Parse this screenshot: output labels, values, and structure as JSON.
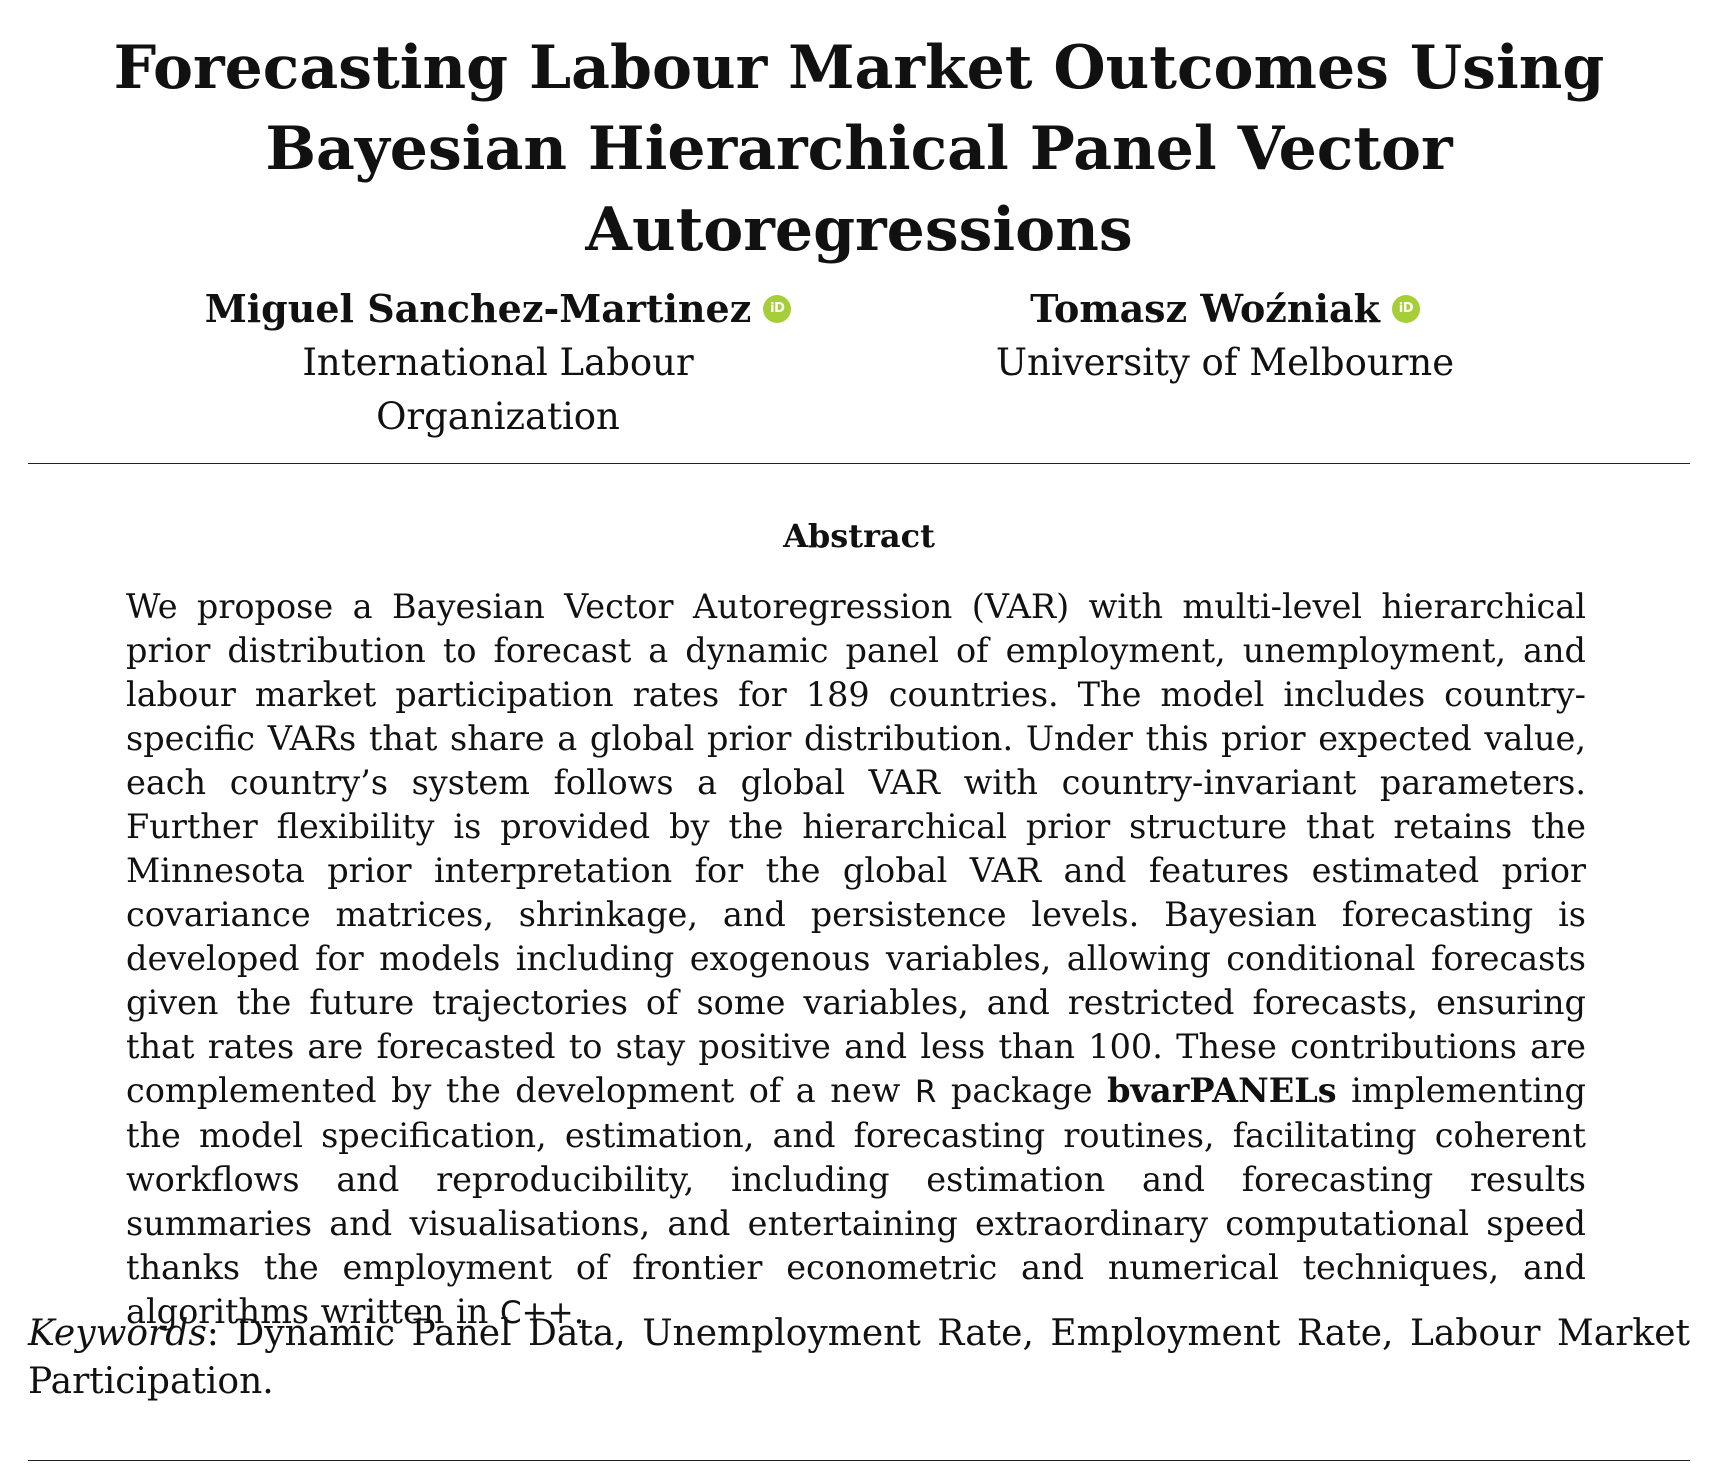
{
  "paper": {
    "title": "Forecasting Labour Market Outcomes Using Bayesian Hierarchical Panel Vector Autoregressions",
    "authors": [
      {
        "name": "Miguel Sanchez-Martinez",
        "affiliation": "International Labour Organization",
        "orcid_icon": "orcid-icon",
        "orcid_glyph": "iD"
      },
      {
        "name": "Tomasz Woźniak",
        "affiliation": "University of Melbourne",
        "orcid_icon": "orcid-icon",
        "orcid_glyph": "iD"
      }
    ],
    "orcid_color": "#a6ce39",
    "abstract": {
      "heading": "Abstract",
      "text_1": "We propose a Bayesian Vector Autoregression (VAR) with multi-level hierarchical prior distribution to forecast a dynamic panel of employment, unemployment, and labour market participation rates for 189 countries.  The model includes country-specific VARs that share a global prior distribution.  Under this prior expected value, each country’s system follows a global VAR with country-invariant parameters.  Further flexibility is provided by the hierarchical prior structure that retains the Minnesota prior interpretation for the global VAR and features estimated prior covariance matrices, shrinkage, and persistence levels.  Bayesian forecasting is developed for models including exogenous variables, allowing conditional forecasts given the future trajectories of some variables, and restricted forecasts, ensuring that rates are forecasted to stay positive and less than 100.  These contributions are complemented by the development of a new ",
      "r_label": "R",
      "text_2": " package ",
      "package_name": "bvarPANELs",
      "text_3": " implementing the model specification, estimation, and forecasting routines, facilitating coherent workflows and reproducibility, including estimation and forecasting results summaries and visualisations, and entertaining extraordinary computational speed thanks the employment of frontier econometric and numerical techniques, and algorithms written in ",
      "cpp_label": "C++",
      "text_4": "."
    },
    "keywords": {
      "label": "Keywords",
      "separator": ": ",
      "text": "Dynamic Panel Data, Unemployment Rate, Employment Rate, Labour Market Participation."
    }
  }
}
